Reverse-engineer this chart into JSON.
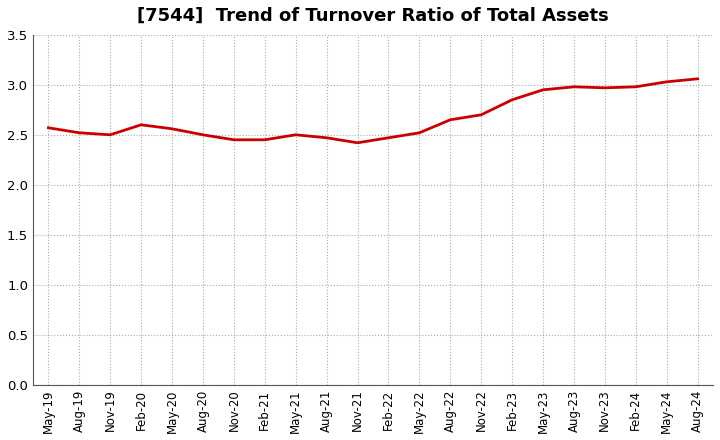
{
  "title": "[7544]  Trend of Turnover Ratio of Total Assets",
  "title_fontsize": 13,
  "line_color": "#CC0000",
  "line_width": 2.0,
  "ylim": [
    0.0,
    3.5
  ],
  "yticks": [
    0.0,
    0.5,
    1.0,
    1.5,
    2.0,
    2.5,
    3.0,
    3.5
  ],
  "background_color": "#FFFFFF",
  "grid_color": "#AAAAAA",
  "x_labels": [
    "May-19",
    "Aug-19",
    "Nov-19",
    "Feb-20",
    "May-20",
    "Aug-20",
    "Nov-20",
    "Feb-21",
    "May-21",
    "Aug-21",
    "Nov-21",
    "Feb-22",
    "May-22",
    "Aug-22",
    "Nov-22",
    "Feb-23",
    "May-23",
    "Aug-23",
    "Nov-23",
    "Feb-24",
    "May-24",
    "Aug-24"
  ],
  "values": [
    2.57,
    2.52,
    2.5,
    2.6,
    2.56,
    2.5,
    2.45,
    2.45,
    2.5,
    2.47,
    2.42,
    2.47,
    2.52,
    2.65,
    2.7,
    2.85,
    2.95,
    2.98,
    2.97,
    2.98,
    3.03,
    3.06
  ]
}
